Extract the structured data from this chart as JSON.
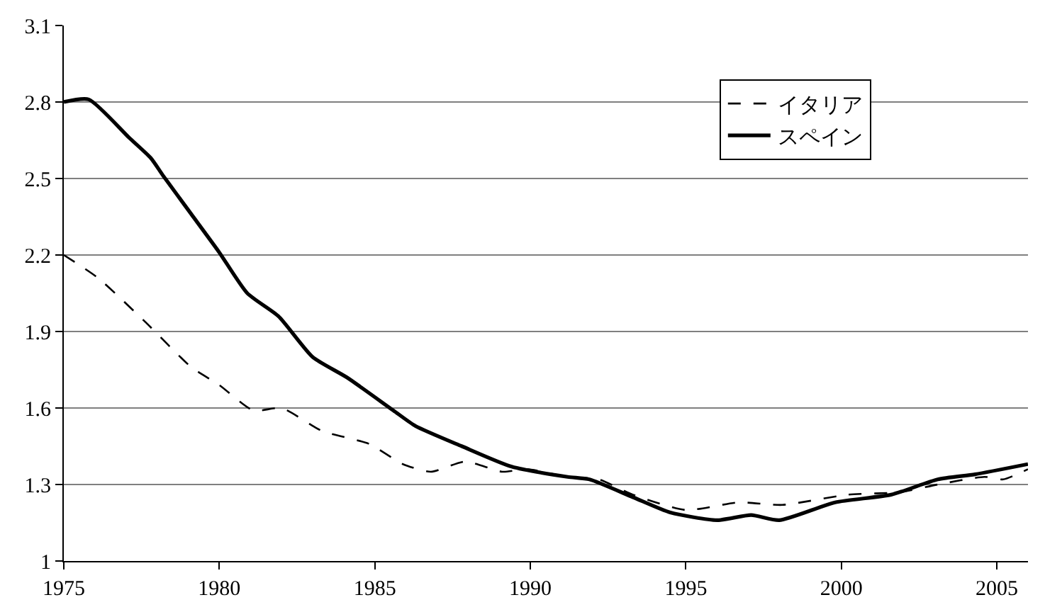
{
  "chart_data": {
    "type": "line",
    "xlim": [
      1975,
      2006
    ],
    "xticks": [
      1975,
      1980,
      1985,
      1990,
      1995,
      2000,
      2005
    ],
    "ylim": [
      1,
      3.1
    ],
    "yticks": [
      1,
      1.3,
      1.6,
      1.9,
      2.2,
      2.5,
      2.8,
      3.1
    ],
    "grid": "y",
    "legend": "top right",
    "marker": "none",
    "series": [
      {
        "name": "イタリア",
        "color": "#000000",
        "line_style": "dashed",
        "x": [
          1975,
          1976.1,
          1977.6,
          1979.1,
          1980,
          1981.1,
          1982,
          1983.3,
          1984.8,
          1985.9,
          1986.8,
          1987.9,
          1989.1,
          1989.9,
          1991.2,
          1992.2,
          1993.3,
          1995,
          1996.7,
          1998.1,
          2000.2,
          2001.9,
          2003.1,
          2004.6,
          2005.2,
          2006
        ],
        "values": [
          2.2,
          2.11,
          1.94,
          1.76,
          1.69,
          1.59,
          1.6,
          1.51,
          1.46,
          1.38,
          1.35,
          1.39,
          1.35,
          1.36,
          1.33,
          1.32,
          1.26,
          1.2,
          1.23,
          1.22,
          1.26,
          1.27,
          1.3,
          1.33,
          1.32,
          1.36
        ]
      },
      {
        "name": "スペイン",
        "color": "#000000",
        "line_style": "solid",
        "x": [
          1975,
          1975.8,
          1977.1,
          1977.8,
          1978.2,
          1979.1,
          1980,
          1980.9,
          1981.9,
          1983,
          1984.1,
          1985.6,
          1986.3,
          1987.8,
          1989.4,
          1991.2,
          1991.9,
          1993.3,
          1994.5,
          1996,
          1997.1,
          1998,
          1999.8,
          2001.6,
          2003.1,
          2004.3,
          2006
        ],
        "values": [
          2.8,
          2.81,
          2.66,
          2.58,
          2.51,
          2.36,
          2.21,
          2.05,
          1.96,
          1.8,
          1.72,
          1.59,
          1.53,
          1.45,
          1.37,
          1.33,
          1.32,
          1.25,
          1.19,
          1.16,
          1.18,
          1.16,
          1.23,
          1.26,
          1.32,
          1.34,
          1.38
        ]
      }
    ]
  }
}
